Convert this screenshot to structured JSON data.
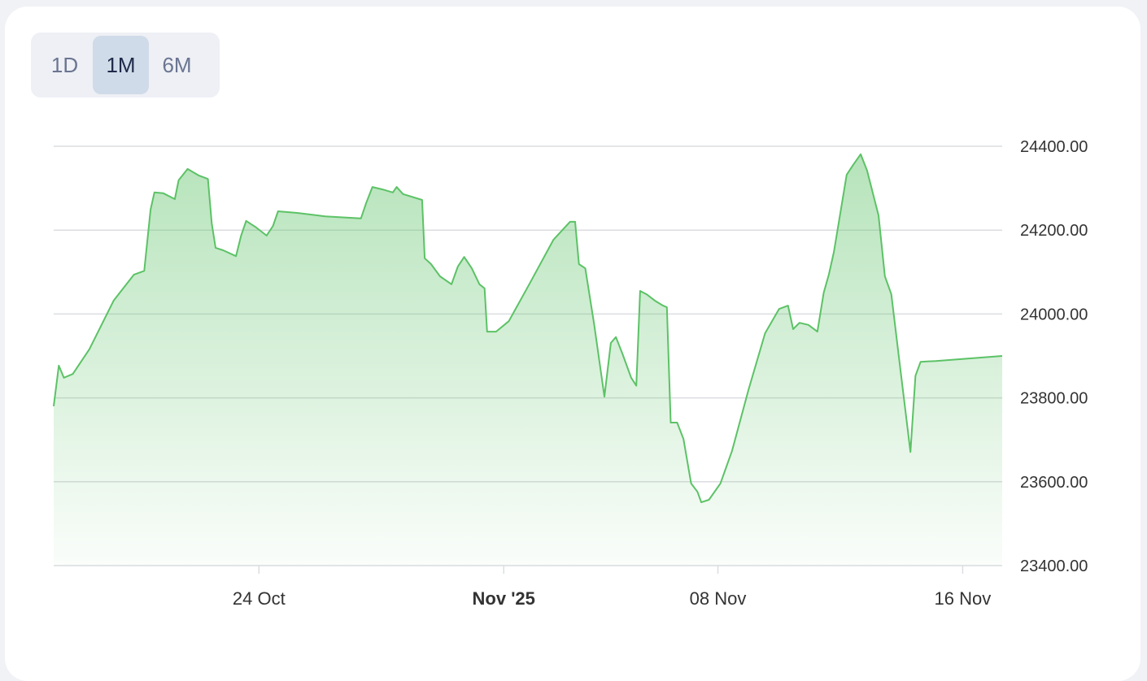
{
  "buttons": [
    {
      "label": "1D",
      "active": false
    },
    {
      "label": "1M",
      "active": true
    },
    {
      "label": "6M",
      "active": false
    }
  ],
  "chart_data": {
    "type": "area",
    "color": "#5cc266",
    "grid": true,
    "x": [
      "2025-10-17T07:00",
      "2025-10-17T11:00",
      "2025-10-17T15:00",
      "2025-10-17T22:00",
      "2025-10-18T11:00",
      "2025-10-19T06:00",
      "2025-10-19T22:00",
      "2025-10-20T06:00",
      "2025-10-20T11:00",
      "2025-10-20T14:00",
      "2025-10-20T21:00",
      "2025-10-21T06:00",
      "2025-10-21T09:00",
      "2025-10-21T16:00",
      "2025-10-22T01:00",
      "2025-10-22T08:00",
      "2025-10-22T11:00",
      "2025-10-22T14:00",
      "2025-10-22T20:00",
      "2025-10-23T06:00",
      "2025-10-23T10:00",
      "2025-10-23T14:00",
      "2025-10-23T22:00",
      "2025-10-24T06:00",
      "2025-10-24T11:00",
      "2025-10-24T15:00",
      "2025-10-25T06:00",
      "2025-10-26T04:00",
      "2025-10-27T08:00",
      "2025-10-27T12:00",
      "2025-10-27T17:00",
      "2025-10-28T01:00",
      "2025-10-28T09:00",
      "2025-10-28T12:00",
      "2025-10-28T17:00",
      "2025-10-29T08:00",
      "2025-10-29T10:00",
      "2025-10-29T15:00",
      "2025-10-29T22:00",
      "2025-10-30T07:00",
      "2025-10-30T12:00",
      "2025-10-30T17:00",
      "2025-10-30T23:00",
      "2025-10-31T05:00",
      "2025-10-31T09:00",
      "2025-10-31T11:00",
      "2025-10-31T18:00",
      "2025-11-01T04:00",
      "2025-11-01T20:00",
      "2025-11-02T15:00",
      "2025-11-03T04:00",
      "2025-11-03T08:00",
      "2025-11-03T11:00",
      "2025-11-03T16:00",
      "2025-11-03T23:00",
      "2025-11-04T07:00",
      "2025-11-04T12:00",
      "2025-11-04T16:00",
      "2025-11-04T21:00",
      "2025-11-05T04:00",
      "2025-11-05T08:00",
      "2025-11-05T11:00",
      "2025-11-05T16:00",
      "2025-11-05T23:00",
      "2025-11-06T05:00",
      "2025-11-06T08:00",
      "2025-11-06T11:00",
      "2025-11-06T16:00",
      "2025-11-06T21:00",
      "2025-11-07T03:00",
      "2025-11-07T08:00",
      "2025-11-07T11:00",
      "2025-11-07T17:00",
      "2025-11-08T02:00",
      "2025-11-08T11:00",
      "2025-11-09T00:00",
      "2025-11-09T13:00",
      "2025-11-10T00:00",
      "2025-11-10T07:00",
      "2025-11-10T11:00",
      "2025-11-10T16:00",
      "2025-11-10T23:00",
      "2025-11-11T06:00",
      "2025-11-11T11:00",
      "2025-11-11T15:00",
      "2025-11-11T19:00",
      "2025-11-12T05:00",
      "2025-11-12T10:00",
      "2025-11-12T16:00",
      "2025-11-12T21:00",
      "2025-11-13T06:00",
      "2025-11-13T11:00",
      "2025-11-13T16:00",
      "2025-11-13T22:00",
      "2025-11-14T07:00",
      "2025-11-14T11:00",
      "2025-11-14T15:00",
      "2025-11-15T03:00",
      "2025-11-17T07:00"
    ],
    "values": [
      23780,
      23877,
      23848,
      23857,
      23916,
      24032,
      24094,
      24103,
      24249,
      24290,
      24288,
      24274,
      24319,
      24346,
      24330,
      24322,
      24216,
      24158,
      24152,
      24138,
      24187,
      24222,
      24206,
      24187,
      24210,
      24245,
      24241,
      24233,
      24228,
      24264,
      24303,
      24297,
      24290,
      24303,
      24286,
      24272,
      24133,
      24119,
      24090,
      24071,
      24113,
      24136,
      24109,
      24071,
      24061,
      23958,
      23958,
      23983,
      24071,
      24177,
      24220,
      24220,
      24119,
      24109,
      23974,
      23803,
      23931,
      23945,
      23906,
      23848,
      23829,
      24055,
      24047,
      24031,
      24020,
      24016,
      23741,
      23741,
      23702,
      23596,
      23576,
      23551,
      23557,
      23596,
      23673,
      23819,
      23954,
      24012,
      24020,
      23964,
      23979,
      23974,
      23958,
      24051,
      24094,
      24148,
      24332,
      24355,
      24381,
      24342,
      24235,
      24090,
      24047,
      23896,
      23671,
      23853,
      23886,
      23888,
      23900
    ],
    "xlim": [
      "2025-10-17T07:00",
      "2025-11-17T07:00"
    ],
    "xticks": [
      {
        "value": "2025-10-24T00:00",
        "label": "24 Oct"
      },
      {
        "value": "2025-11-01T00:00",
        "label": "Nov '25",
        "bold": true
      },
      {
        "value": "2025-11-08T00:00",
        "label": "08 Nov"
      },
      {
        "value": "2025-11-16T00:00",
        "label": "16 Nov"
      }
    ],
    "ylim": [
      23400,
      24400
    ],
    "yticks": [
      {
        "value": 23400,
        "label": "23400.00"
      },
      {
        "value": 23600,
        "label": "23600.00"
      },
      {
        "value": 23800,
        "label": "23800.00"
      },
      {
        "value": 24000,
        "label": "24000.00"
      },
      {
        "value": 24200,
        "label": "24200.00"
      },
      {
        "value": 24400,
        "label": "24400.00"
      }
    ]
  }
}
